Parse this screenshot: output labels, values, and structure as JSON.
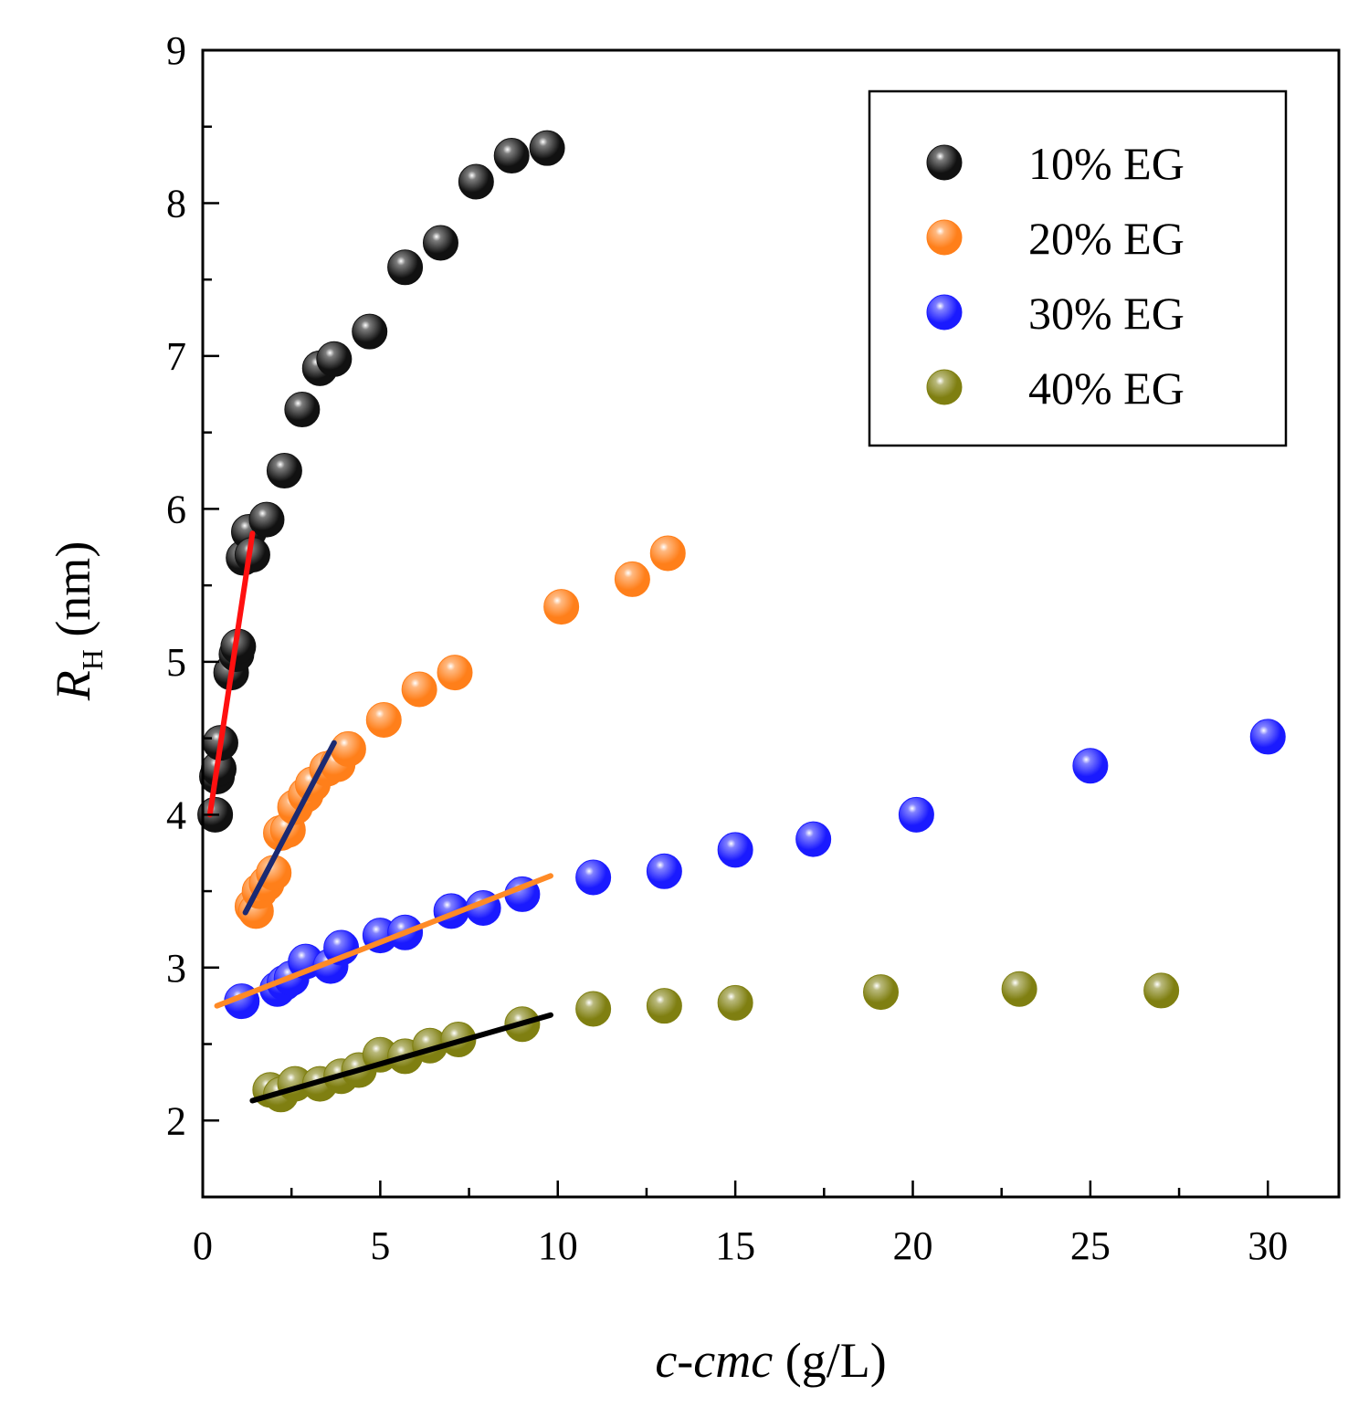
{
  "chart_data": {
    "type": "scatter",
    "xlabel_italic": "c-cmc",
    "xlabel_unit": "(g/L)",
    "ylabel_symbol": "R",
    "ylabel_subscript": "H",
    "ylabel_unit": "(nm)",
    "xlim": [
      0,
      32
    ],
    "ylim": [
      1.5,
      9
    ],
    "xticks": [
      "0",
      "5",
      "10",
      "15",
      "20",
      "25",
      "30"
    ],
    "yticks": [
      "2",
      "3",
      "4",
      "5",
      "6",
      "7",
      "8",
      "9"
    ],
    "xtick_values": [
      0,
      5,
      10,
      15,
      20,
      25,
      30
    ],
    "ytick_values": [
      2,
      3,
      4,
      5,
      6,
      7,
      8,
      9
    ],
    "grid": false,
    "legend_position": "top-right",
    "series": [
      {
        "name": "10% EG",
        "color": "#111111",
        "x": [
          0.35,
          0.4,
          0.45,
          0.5,
          0.8,
          0.95,
          1.0,
          1.15,
          1.3,
          1.4,
          1.8,
          2.3,
          2.8,
          3.3,
          3.7,
          4.7,
          5.7,
          6.7,
          7.7,
          8.7,
          9.7
        ],
        "y": [
          4.0,
          4.25,
          4.3,
          4.47,
          4.93,
          5.05,
          5.1,
          5.68,
          5.85,
          5.7,
          5.93,
          6.25,
          6.65,
          6.92,
          6.98,
          7.16,
          7.58,
          7.74,
          8.14,
          8.31,
          8.36
        ]
      },
      {
        "name": "20% EG",
        "color": "#ff7f1a",
        "x": [
          1.4,
          1.5,
          1.6,
          1.8,
          2.0,
          2.2,
          2.4,
          2.6,
          2.9,
          3.1,
          3.5,
          3.8,
          4.1,
          5.1,
          6.1,
          7.1,
          10.1,
          12.1,
          13.1
        ],
        "y": [
          3.4,
          3.37,
          3.5,
          3.55,
          3.62,
          3.88,
          3.9,
          4.05,
          4.13,
          4.2,
          4.3,
          4.33,
          4.43,
          4.62,
          4.82,
          4.93,
          5.36,
          5.54,
          5.71
        ],
        "fit": {
          "x": [
            1.2,
            3.7
          ],
          "y": [
            3.36,
            4.47
          ],
          "color": "#1b2a72"
        }
      },
      {
        "name": "30% EG",
        "color": "#1a1aff",
        "x": [
          1.1,
          2.1,
          2.3,
          2.5,
          2.9,
          3.6,
          3.9,
          5.0,
          5.7,
          7.0,
          7.9,
          9.0,
          11.0,
          13.0,
          15.0,
          17.2,
          20.1,
          25.0,
          30.0
        ],
        "y": [
          2.78,
          2.86,
          2.9,
          2.93,
          3.04,
          3.01,
          3.13,
          3.21,
          3.23,
          3.37,
          3.39,
          3.48,
          3.59,
          3.63,
          3.77,
          3.84,
          4.0,
          4.32,
          4.51
        ],
        "fit": {
          "x": [
            0.4,
            9.8
          ],
          "y": [
            2.75,
            3.6
          ],
          "color": "#ff8a26"
        }
      },
      {
        "name": "40% EG",
        "color": "#7f7f11",
        "x": [
          1.9,
          2.2,
          2.6,
          3.3,
          3.9,
          4.4,
          5.0,
          5.7,
          6.4,
          7.2,
          9.0,
          11.0,
          13.0,
          15.0,
          19.1,
          23.0,
          27.0
        ],
        "y": [
          2.2,
          2.17,
          2.24,
          2.24,
          2.29,
          2.33,
          2.43,
          2.42,
          2.49,
          2.53,
          2.63,
          2.73,
          2.75,
          2.77,
          2.84,
          2.86,
          2.85
        ],
        "fit": {
          "x": [
            1.4,
            9.8
          ],
          "y": [
            2.13,
            2.69
          ],
          "color": "#000000"
        }
      }
    ],
    "extra_fits": [
      {
        "x": [
          0.2,
          1.4
        ],
        "y": [
          4.0,
          5.84
        ],
        "color": "#ff1010"
      }
    ]
  }
}
